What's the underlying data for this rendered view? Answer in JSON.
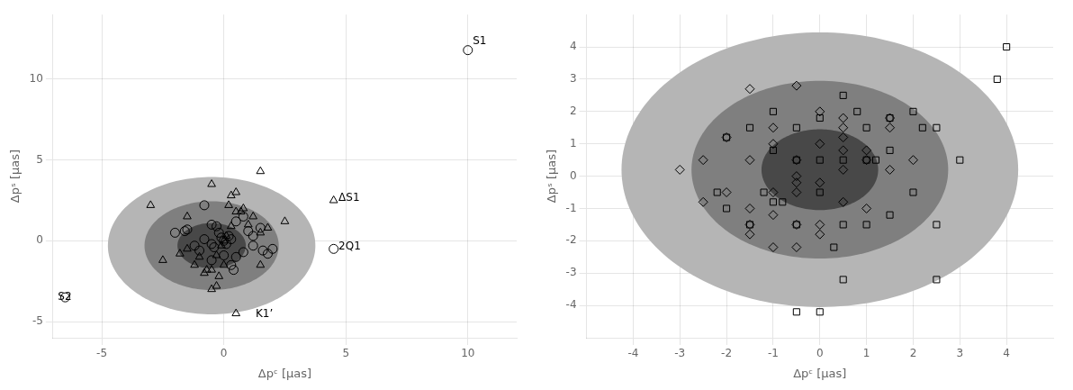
{
  "chart_data": [
    {
      "type": "scatter",
      "xlabel": "Δpᶜ [μas]",
      "ylabel": "Δpˢ [μas]",
      "xlim": [
        -7,
        12
      ],
      "ylim": [
        -6,
        14
      ],
      "xticks": [
        -5,
        0,
        5,
        10
      ],
      "yticks": [
        -5,
        0,
        5,
        10
      ],
      "grid": true,
      "ellipses": [
        {
          "cx": -0.5,
          "cy": -0.3,
          "width": 8.5,
          "height": 8.5,
          "angle": 0,
          "color": "#b5b5b5"
        },
        {
          "cx": -0.5,
          "cy": -0.3,
          "width": 5.5,
          "height": 5.5,
          "angle": 0,
          "color": "#7f7f7f"
        },
        {
          "cx": -0.5,
          "cy": -0.3,
          "width": 2.8,
          "height": 2.8,
          "angle": 0,
          "color": "#484848"
        }
      ],
      "series": [
        {
          "marker": "circle",
          "color": "black",
          "x": [
            10.0,
            4.5,
            -6.5,
            0.3,
            -0.5,
            1.5,
            0.8,
            -0.2,
            1.2,
            -0.8,
            0.2,
            -0.4,
            1.0,
            -1.0,
            0.5,
            -0.5,
            0.1,
            -0.1,
            2.0,
            -2.0,
            0.8,
            0.3,
            -1.5,
            1.8,
            -0.3,
            0.0,
            0.5,
            -0.5,
            1.2,
            -1.2,
            0.0,
            -0.8,
            1.6,
            -1.6,
            0.4
          ],
          "values": [
            11.8,
            -0.5,
            -3.5,
            0.1,
            -0.2,
            0.8,
            -0.7,
            0.5,
            -0.3,
            0.1,
            0.3,
            -0.4,
            0.6,
            -0.6,
            -1.0,
            1.0,
            -0.2,
            0.2,
            -0.5,
            0.5,
            1.5,
            -1.5,
            0.7,
            -0.8,
            0.9,
            -0.9,
            1.2,
            -1.2,
            0.3,
            -0.3,
            0.0,
            2.2,
            -0.6,
            0.6,
            -1.8
          ]
        },
        {
          "marker": "triangle",
          "color": "black",
          "x": [
            4.5,
            1.5,
            0.5,
            -0.5,
            -3.0,
            0.0,
            0.8,
            -0.8,
            1.2,
            -1.2,
            0.5,
            -0.5,
            1.8,
            -1.8,
            0.2,
            -0.2,
            0.7,
            -0.7,
            1.5,
            -1.5,
            0.3,
            -0.3,
            0.1,
            -0.1,
            1.0,
            -1.0,
            -0.5,
            0.5,
            -0.3,
            0.3,
            -1.5,
            1.5,
            2.5,
            -2.5,
            0.0
          ],
          "values": [
            2.5,
            4.3,
            -4.5,
            3.5,
            2.2,
            -1.5,
            2.0,
            -2.0,
            1.5,
            -1.5,
            3.0,
            -3.0,
            0.8,
            -0.8,
            2.2,
            -2.2,
            1.8,
            -1.8,
            0.5,
            -0.5,
            2.8,
            -2.8,
            0.3,
            -0.3,
            1.0,
            -1.0,
            -1.8,
            1.8,
            -0.9,
            0.9,
            1.5,
            -1.5,
            1.2,
            -1.2,
            0.0
          ]
        }
      ],
      "annotations": [
        {
          "text": "S1",
          "x": 10.2,
          "y": 12.0
        },
        {
          "text": "ΔS1",
          "x": 4.7,
          "y": 2.3
        },
        {
          "text": "2Q1",
          "x": 4.7,
          "y": -0.7
        },
        {
          "text": "S2",
          "x": -6.8,
          "y": -3.8
        },
        {
          "text": "K1’",
          "x": 1.3,
          "y": -4.9
        }
      ]
    },
    {
      "type": "scatter",
      "xlabel": "Δpᶜ [μas]",
      "ylabel": "Δpˢ [μas]",
      "xlim": [
        -5,
        5
      ],
      "ylim": [
        -5,
        5
      ],
      "xticks": [
        -4,
        -3,
        -2,
        -1,
        0,
        1,
        2,
        3,
        4
      ],
      "yticks": [
        -4,
        -3,
        -2,
        -1,
        0,
        1,
        2,
        3,
        4
      ],
      "grid": true,
      "ellipses": [
        {
          "cx": 0.0,
          "cy": 0.2,
          "width": 8.5,
          "height": 8.5,
          "angle": 0,
          "color": "#b5b5b5"
        },
        {
          "cx": 0.0,
          "cy": 0.2,
          "width": 5.5,
          "height": 5.5,
          "angle": 0,
          "color": "#7f7f7f"
        },
        {
          "cx": 0.0,
          "cy": 0.2,
          "width": 2.5,
          "height": 2.5,
          "angle": 0,
          "color": "#484848"
        }
      ],
      "series": [
        {
          "marker": "square",
          "color": "black",
          "x": [
            4.0,
            3.8,
            3.0,
            2.5,
            2.5,
            2.5,
            2.0,
            2.0,
            1.5,
            1.5,
            1.5,
            1.0,
            1.0,
            1.0,
            0.5,
            0.5,
            0.5,
            0.0,
            0.0,
            0.0,
            -0.5,
            -0.5,
            -0.5,
            -1.0,
            -1.0,
            -1.0,
            -1.5,
            -1.5,
            -2.0,
            -2.0,
            0.5,
            -0.5,
            0.0,
            1.2,
            -1.2,
            2.2,
            -2.2,
            0.8,
            -0.8,
            0.3
          ],
          "values": [
            4.0,
            3.0,
            0.5,
            1.5,
            -1.5,
            -3.2,
            2.0,
            -0.5,
            1.8,
            0.8,
            -1.2,
            1.5,
            0.5,
            -1.5,
            2.5,
            0.5,
            -1.5,
            1.8,
            0.5,
            -0.5,
            1.5,
            0.5,
            -1.5,
            2.0,
            0.8,
            -0.8,
            1.5,
            -1.5,
            1.2,
            -1.0,
            -3.2,
            -4.2,
            -4.2,
            0.5,
            -0.5,
            1.5,
            -0.5,
            2.0,
            -0.8,
            -2.2
          ]
        },
        {
          "marker": "diamond",
          "color": "black",
          "x": [
            -0.5,
            -1.5,
            -2.5,
            0.5,
            -1.0,
            -0.5,
            -1.5,
            -2.0,
            0.0,
            -1.0,
            0.5,
            1.5,
            -0.5,
            0.5,
            -1.0,
            1.0,
            -1.5,
            0.0,
            -0.5,
            0.5,
            -1.5,
            1.0,
            -2.0,
            0.0,
            0.5,
            -1.0,
            1.5,
            -0.5,
            0.0,
            2.0,
            -2.5,
            0.5,
            -1.0,
            -0.5,
            1.5,
            -3.0,
            0.0,
            -1.5,
            1.0,
            -0.5
          ],
          "values": [
            2.8,
            2.7,
            0.5,
            0.2,
            1.5,
            -0.5,
            0.5,
            1.2,
            2.0,
            -0.5,
            1.8,
            1.5,
            -0.2,
            1.2,
            -1.2,
            0.8,
            -1.8,
            -0.2,
            -2.2,
            -0.8,
            -1.0,
            0.5,
            -0.5,
            -1.5,
            0.8,
            -2.2,
            0.2,
            -1.5,
            1.0,
            0.5,
            -0.8,
            1.5,
            1.0,
            0.5,
            1.8,
            0.2,
            -1.8,
            -1.5,
            -1.0,
            0.0
          ]
        }
      ]
    }
  ]
}
